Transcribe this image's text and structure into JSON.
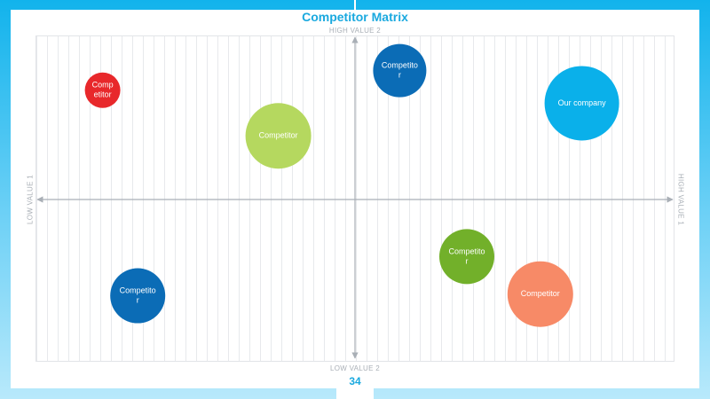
{
  "title": "Competitor Matrix",
  "axes": {
    "top": "HIGH VALUE 2",
    "bottom": "LOW VALUE 2",
    "left": "LOW VALUE 1",
    "right": "HIGH VALUE 1"
  },
  "page_number": "34",
  "colors": {
    "accent": "#1aa9df",
    "axis": "#a9afb6"
  },
  "bubbles": [
    {
      "label": "Competitor",
      "lines": [
        "Comp",
        "etitor"
      ],
      "value1": -7.9,
      "value2": 6.7,
      "size": 1.0,
      "color": "#e8282b"
    },
    {
      "label": "Competitor",
      "lines": [
        "Competito",
        "r"
      ],
      "value1": 1.4,
      "value2": 7.9,
      "size": 1.5,
      "color": "#0b6cb6"
    },
    {
      "label": "Our company",
      "lines": [
        "Our company"
      ],
      "value1": 7.1,
      "value2": 5.9,
      "size": 2.1,
      "color": "#0ab0ea"
    },
    {
      "label": "Competitor",
      "lines": [
        "Competitor"
      ],
      "value1": -2.4,
      "value2": 3.9,
      "size": 1.85,
      "color": "#b5d85f"
    },
    {
      "label": "Competitor",
      "lines": [
        "Competito",
        "r"
      ],
      "value1": 3.5,
      "value2": -3.5,
      "size": 1.55,
      "color": "#72b02a"
    },
    {
      "label": "Competitor",
      "lines": [
        "Competitor"
      ],
      "value1": 5.8,
      "value2": -5.8,
      "size": 1.85,
      "color": "#f78a67"
    },
    {
      "label": "Competitor",
      "lines": [
        "Competito",
        "r"
      ],
      "value1": -6.8,
      "value2": -5.9,
      "size": 1.55,
      "color": "#0b6cb6"
    }
  ]
}
